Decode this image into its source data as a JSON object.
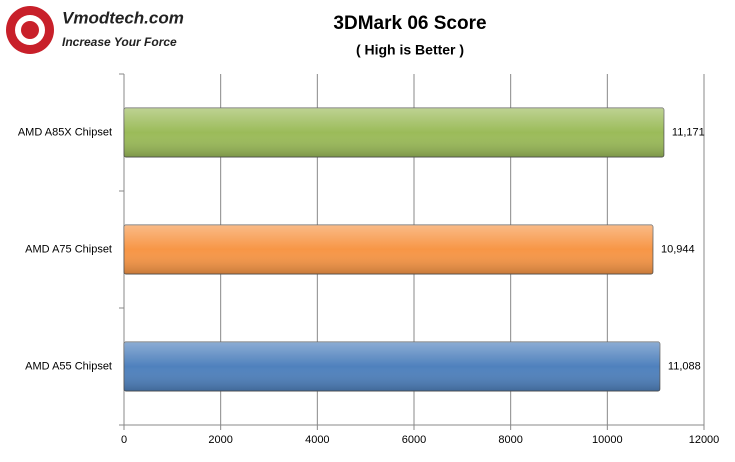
{
  "logo": {
    "name": "Vmodtech.com",
    "tagline": "Increase Your Force"
  },
  "chart_data": {
    "type": "bar",
    "orientation": "horizontal",
    "title": "3DMark 06 Score",
    "subtitle": "( High is Better )",
    "categories": [
      "AMD A85X Chipset",
      "AMD A75 Chipset",
      "AMD A55 Chipset"
    ],
    "values": [
      11171,
      10944,
      11088
    ],
    "value_labels": [
      "11,171",
      "10,944",
      "11,088"
    ],
    "colors": [
      "#9bbb59",
      "#f79646",
      "#4f81bd"
    ],
    "xlim": [
      0,
      12000
    ],
    "xticks": [
      0,
      2000,
      4000,
      6000,
      8000,
      10000,
      12000
    ],
    "grid": true
  }
}
